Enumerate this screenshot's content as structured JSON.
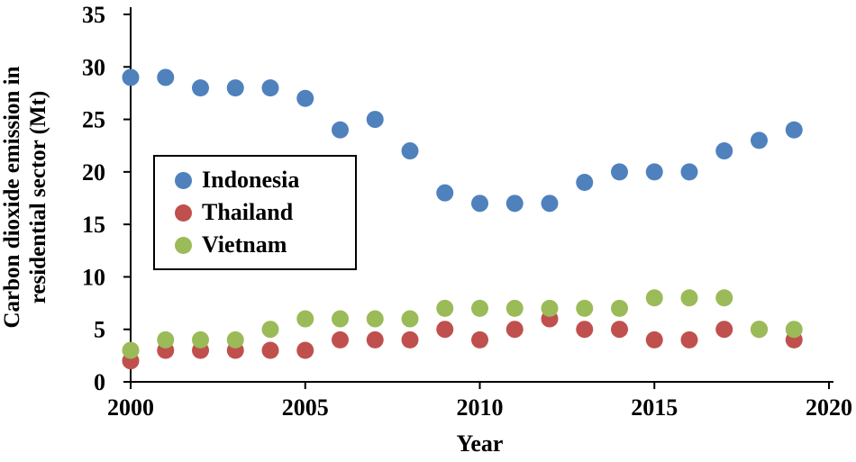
{
  "chart_data": {
    "type": "scatter",
    "title": "",
    "xlabel": "Year",
    "ylabel": "Carbon dioxide emission in residential sector (Mt)",
    "ylabel_lines": [
      "Carbon dioxide emission in",
      "residential sector (Mt)"
    ],
    "xlim": [
      2000,
      2020
    ],
    "ylim": [
      0,
      35
    ],
    "x_ticks": [
      "2000",
      "2005",
      "2010",
      "2015",
      "2020"
    ],
    "y_ticks": [
      "0",
      "5",
      "10",
      "15",
      "20",
      "25",
      "30",
      "35"
    ],
    "grid": false,
    "legend_position": "inside-left-middle",
    "axis_color": "#000000",
    "marker": {
      "shape": "circle",
      "radius_px": 9.5
    },
    "x": [
      2000,
      2001,
      2002,
      2003,
      2004,
      2005,
      2006,
      2007,
      2008,
      2009,
      2010,
      2011,
      2012,
      2013,
      2014,
      2015,
      2016,
      2017,
      2018,
      2019
    ],
    "series": [
      {
        "name": "Indonesia",
        "color": "#4F81BD",
        "values": [
          29,
          29,
          28,
          28,
          28,
          27,
          24,
          25,
          22,
          18,
          17,
          17,
          17,
          19,
          20,
          20,
          20,
          22,
          23,
          24
        ]
      },
      {
        "name": "Thailand",
        "color": "#C0504D",
        "values": [
          2,
          3,
          3,
          3,
          3,
          3,
          4,
          4,
          4,
          5,
          4,
          5,
          6,
          5,
          5,
          4,
          4,
          5,
          5,
          4
        ]
      },
      {
        "name": "Vietnam",
        "color": "#9BBB59",
        "values": [
          3,
          4,
          4,
          4,
          5,
          6,
          6,
          6,
          6,
          7,
          7,
          7,
          7,
          7,
          7,
          8,
          8,
          8,
          5,
          5
        ]
      }
    ]
  }
}
